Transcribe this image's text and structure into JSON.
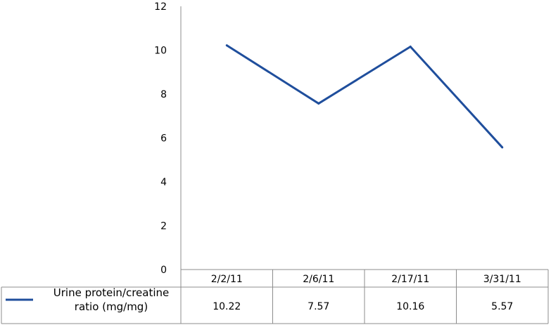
{
  "chart_data": {
    "type": "line",
    "categories": [
      "2/2/11",
      "2/6/11",
      "2/17/11",
      "3/31/11"
    ],
    "series": [
      {
        "name": "Urine protein/creatine ratio (mg/mg)",
        "name_lines": [
          "Urine protein/creatine",
          "ratio (mg/mg)"
        ],
        "values": [
          10.22,
          7.57,
          10.16,
          5.57
        ],
        "value_labels": [
          "10.22",
          "7.57",
          "10.16",
          "5.57"
        ],
        "color": "#1f4e9c"
      }
    ],
    "yticks": [
      "0",
      "2",
      "4",
      "6",
      "8",
      "10",
      "12"
    ],
    "ylim": [
      0,
      12
    ],
    "grid": false,
    "legend": "data-table-left",
    "title": "",
    "xlabel": "",
    "ylabel": ""
  }
}
